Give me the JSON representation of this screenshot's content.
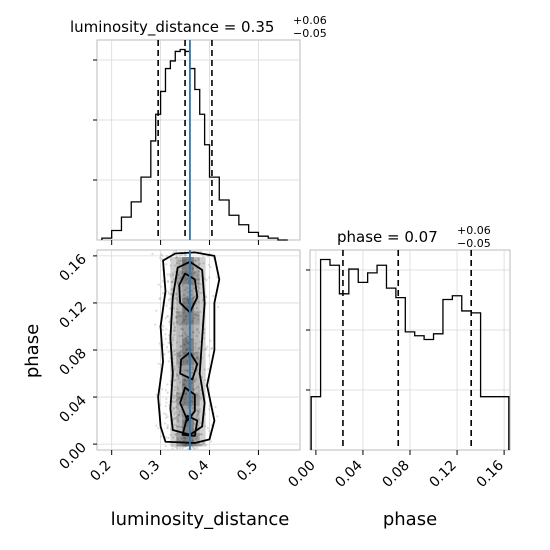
{
  "chart_data": [
    {
      "type": "histogram",
      "panel": "luminosity_distance-marginal",
      "title": {
        "text": "luminosity_distance = 0.35",
        "sup": "+0.06",
        "sub": "−0.05"
      },
      "bins_x": [
        0.18,
        0.2,
        0.22,
        0.24,
        0.26,
        0.28,
        0.29,
        0.3,
        0.31,
        0.32,
        0.33,
        0.34,
        0.35,
        0.36,
        0.37,
        0.38,
        0.39,
        0.4,
        0.42,
        0.44,
        0.46,
        0.48,
        0.5,
        0.52,
        0.54,
        0.56
      ],
      "counts": [
        0.01,
        0.05,
        0.12,
        0.2,
        0.33,
        0.52,
        0.66,
        0.78,
        0.9,
        0.94,
        0.99,
        1.0,
        0.99,
        0.9,
        0.79,
        0.66,
        0.5,
        0.33,
        0.21,
        0.13,
        0.08,
        0.04,
        0.02,
        0.01,
        0.0
      ],
      "quantiles": [
        0.295,
        0.35,
        0.405
      ],
      "truth": 0.36,
      "xlim": [
        0.17,
        0.585
      ],
      "ylim": [
        0,
        1.05
      ],
      "xticks": [
        0.2,
        0.3,
        0.4,
        0.5
      ],
      "grid": true
    },
    {
      "type": "histogram",
      "panel": "phase-marginal",
      "title": {
        "text": "phase = 0.07",
        "sup": "+0.06",
        "sub": "−0.05"
      },
      "bins_x": [
        -0.004,
        0.0,
        0.004,
        0.008,
        0.012,
        0.016,
        0.02,
        0.024,
        0.028,
        0.032,
        0.036,
        0.04,
        0.044,
        0.048,
        0.052,
        0.056,
        0.06,
        0.064,
        0.068,
        0.072,
        0.076,
        0.08,
        0.084,
        0.088,
        0.092,
        0.096,
        0.1,
        0.104,
        0.108,
        0.112,
        0.116,
        0.12,
        0.124,
        0.128,
        0.132,
        0.136,
        0.14,
        0.144,
        0.148,
        0.152,
        0.156,
        0.16,
        0.164
      ],
      "counts": [
        0.28,
        0.28,
        1.0,
        1.0,
        0.97,
        0.97,
        0.82,
        0.82,
        0.95,
        0.95,
        0.88,
        0.88,
        0.93,
        0.93,
        0.97,
        0.97,
        0.85,
        0.85,
        0.8,
        0.8,
        0.62,
        0.62,
        0.6,
        0.6,
        0.58,
        0.58,
        0.61,
        0.61,
        0.79,
        0.79,
        0.81,
        0.81,
        0.73,
        0.73,
        0.72,
        0.72,
        0.28,
        0.28,
        0.28,
        0.28,
        0.28,
        0.28
      ],
      "quantiles": [
        0.023,
        0.07,
        0.132
      ],
      "xlim": [
        -0.005,
        0.165
      ],
      "ylim": [
        0,
        1.05
      ],
      "xticks": [
        0.0,
        0.04,
        0.08,
        0.12,
        0.16
      ],
      "xtick_labels": [
        "0.00",
        "0.04",
        "0.08",
        "0.12",
        "0.16"
      ],
      "xlabel": "phase",
      "grid": true
    },
    {
      "type": "contour-2d",
      "panel": "joint",
      "x_param": "luminosity_distance",
      "y_param": "phase",
      "xlim": [
        0.17,
        0.585
      ],
      "ylim": [
        -0.005,
        0.165
      ],
      "xticks": [
        0.2,
        0.3,
        0.4,
        0.5
      ],
      "yticks": [
        0.0,
        0.04,
        0.08,
        0.12,
        0.16
      ],
      "ytick_labels": [
        "0.00",
        "0.04",
        "0.08",
        "0.12",
        "0.16"
      ],
      "xlabel": "luminosity_distance",
      "ylabel": "phase",
      "truth_x": 0.36,
      "grid": true,
      "contours": [
        {
          "level": "outer",
          "points": [
            [
              0.31,
              0.002
            ],
            [
              0.37,
              0.001
            ],
            [
              0.4,
              0.004
            ],
            [
              0.41,
              0.02
            ],
            [
              0.395,
              0.05
            ],
            [
              0.41,
              0.08
            ],
            [
              0.41,
              0.12
            ],
            [
              0.42,
              0.14
            ],
            [
              0.41,
              0.16
            ],
            [
              0.37,
              0.163
            ],
            [
              0.33,
              0.162
            ],
            [
              0.305,
              0.156
            ],
            [
              0.31,
              0.13
            ],
            [
              0.3,
              0.1
            ],
            [
              0.305,
              0.07
            ],
            [
              0.295,
              0.04
            ],
            [
              0.3,
              0.015
            ]
          ]
        },
        {
          "level": "middle",
          "points": [
            [
              0.325,
              0.012
            ],
            [
              0.36,
              0.008
            ],
            [
              0.385,
              0.015
            ],
            [
              0.39,
              0.035
            ],
            [
              0.38,
              0.06
            ],
            [
              0.385,
              0.09
            ],
            [
              0.39,
              0.12
            ],
            [
              0.385,
              0.148
            ],
            [
              0.36,
              0.155
            ],
            [
              0.335,
              0.15
            ],
            [
              0.325,
              0.125
            ],
            [
              0.32,
              0.09
            ],
            [
              0.325,
              0.06
            ],
            [
              0.32,
              0.03
            ]
          ]
        },
        {
          "level": "inner-top",
          "points": [
            [
              0.34,
              0.12
            ],
            [
              0.36,
              0.112
            ],
            [
              0.375,
              0.125
            ],
            [
              0.37,
              0.14
            ],
            [
              0.35,
              0.145
            ],
            [
              0.338,
              0.135
            ]
          ]
        },
        {
          "level": "inner-mid",
          "points": [
            [
              0.34,
              0.06
            ],
            [
              0.365,
              0.055
            ],
            [
              0.375,
              0.068
            ],
            [
              0.36,
              0.078
            ],
            [
              0.342,
              0.072
            ]
          ]
        },
        {
          "level": "inner-low",
          "points": [
            [
              0.34,
              0.035
            ],
            [
              0.355,
              0.02
            ],
            [
              0.37,
              0.028
            ],
            [
              0.37,
              0.042
            ],
            [
              0.35,
              0.048
            ]
          ]
        },
        {
          "level": "inner-bottom",
          "points": [
            [
              0.345,
              0.008
            ],
            [
              0.37,
              0.007
            ],
            [
              0.375,
              0.02
            ],
            [
              0.355,
              0.024
            ]
          ]
        }
      ]
    }
  ]
}
